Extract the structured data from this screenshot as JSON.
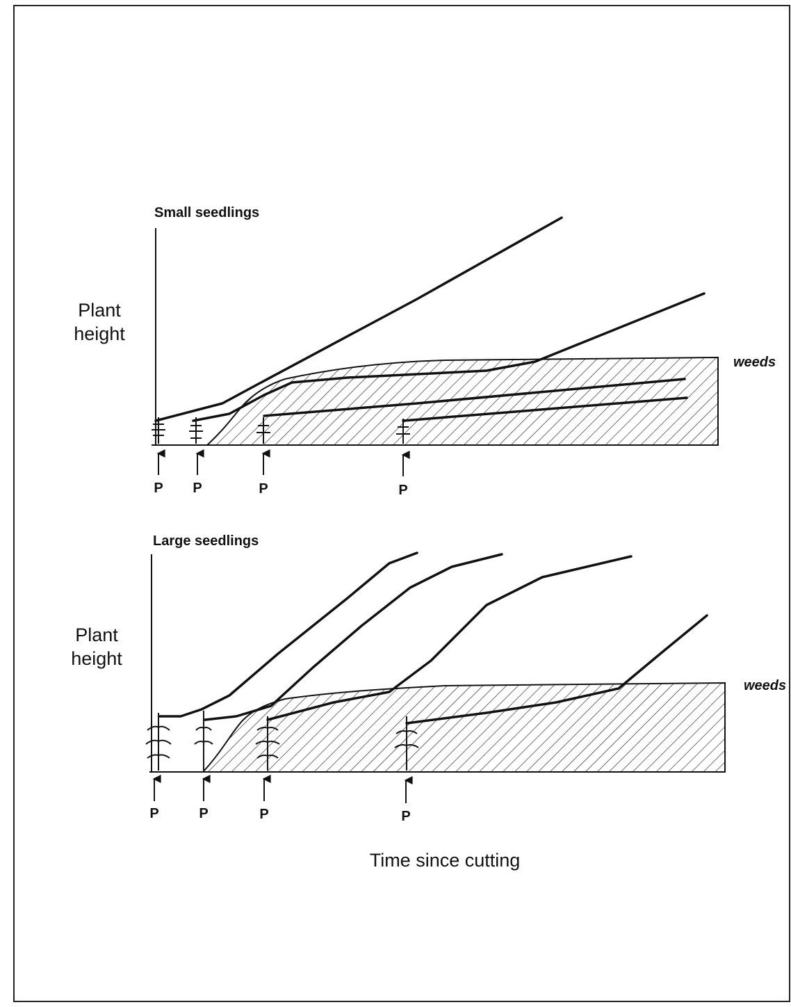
{
  "panels": [
    {
      "title": "Small seedlings",
      "y_label": [
        "Plant",
        "height"
      ],
      "weeds_label": "weeds",
      "markers": [
        "P",
        "P",
        "P",
        "P"
      ]
    },
    {
      "title": "Large seedlings",
      "y_label": [
        "Plant",
        "height"
      ],
      "weeds_label": "weeds",
      "markers": [
        "P",
        "P",
        "P",
        "P"
      ]
    }
  ],
  "x_label": "Time since cutting"
}
